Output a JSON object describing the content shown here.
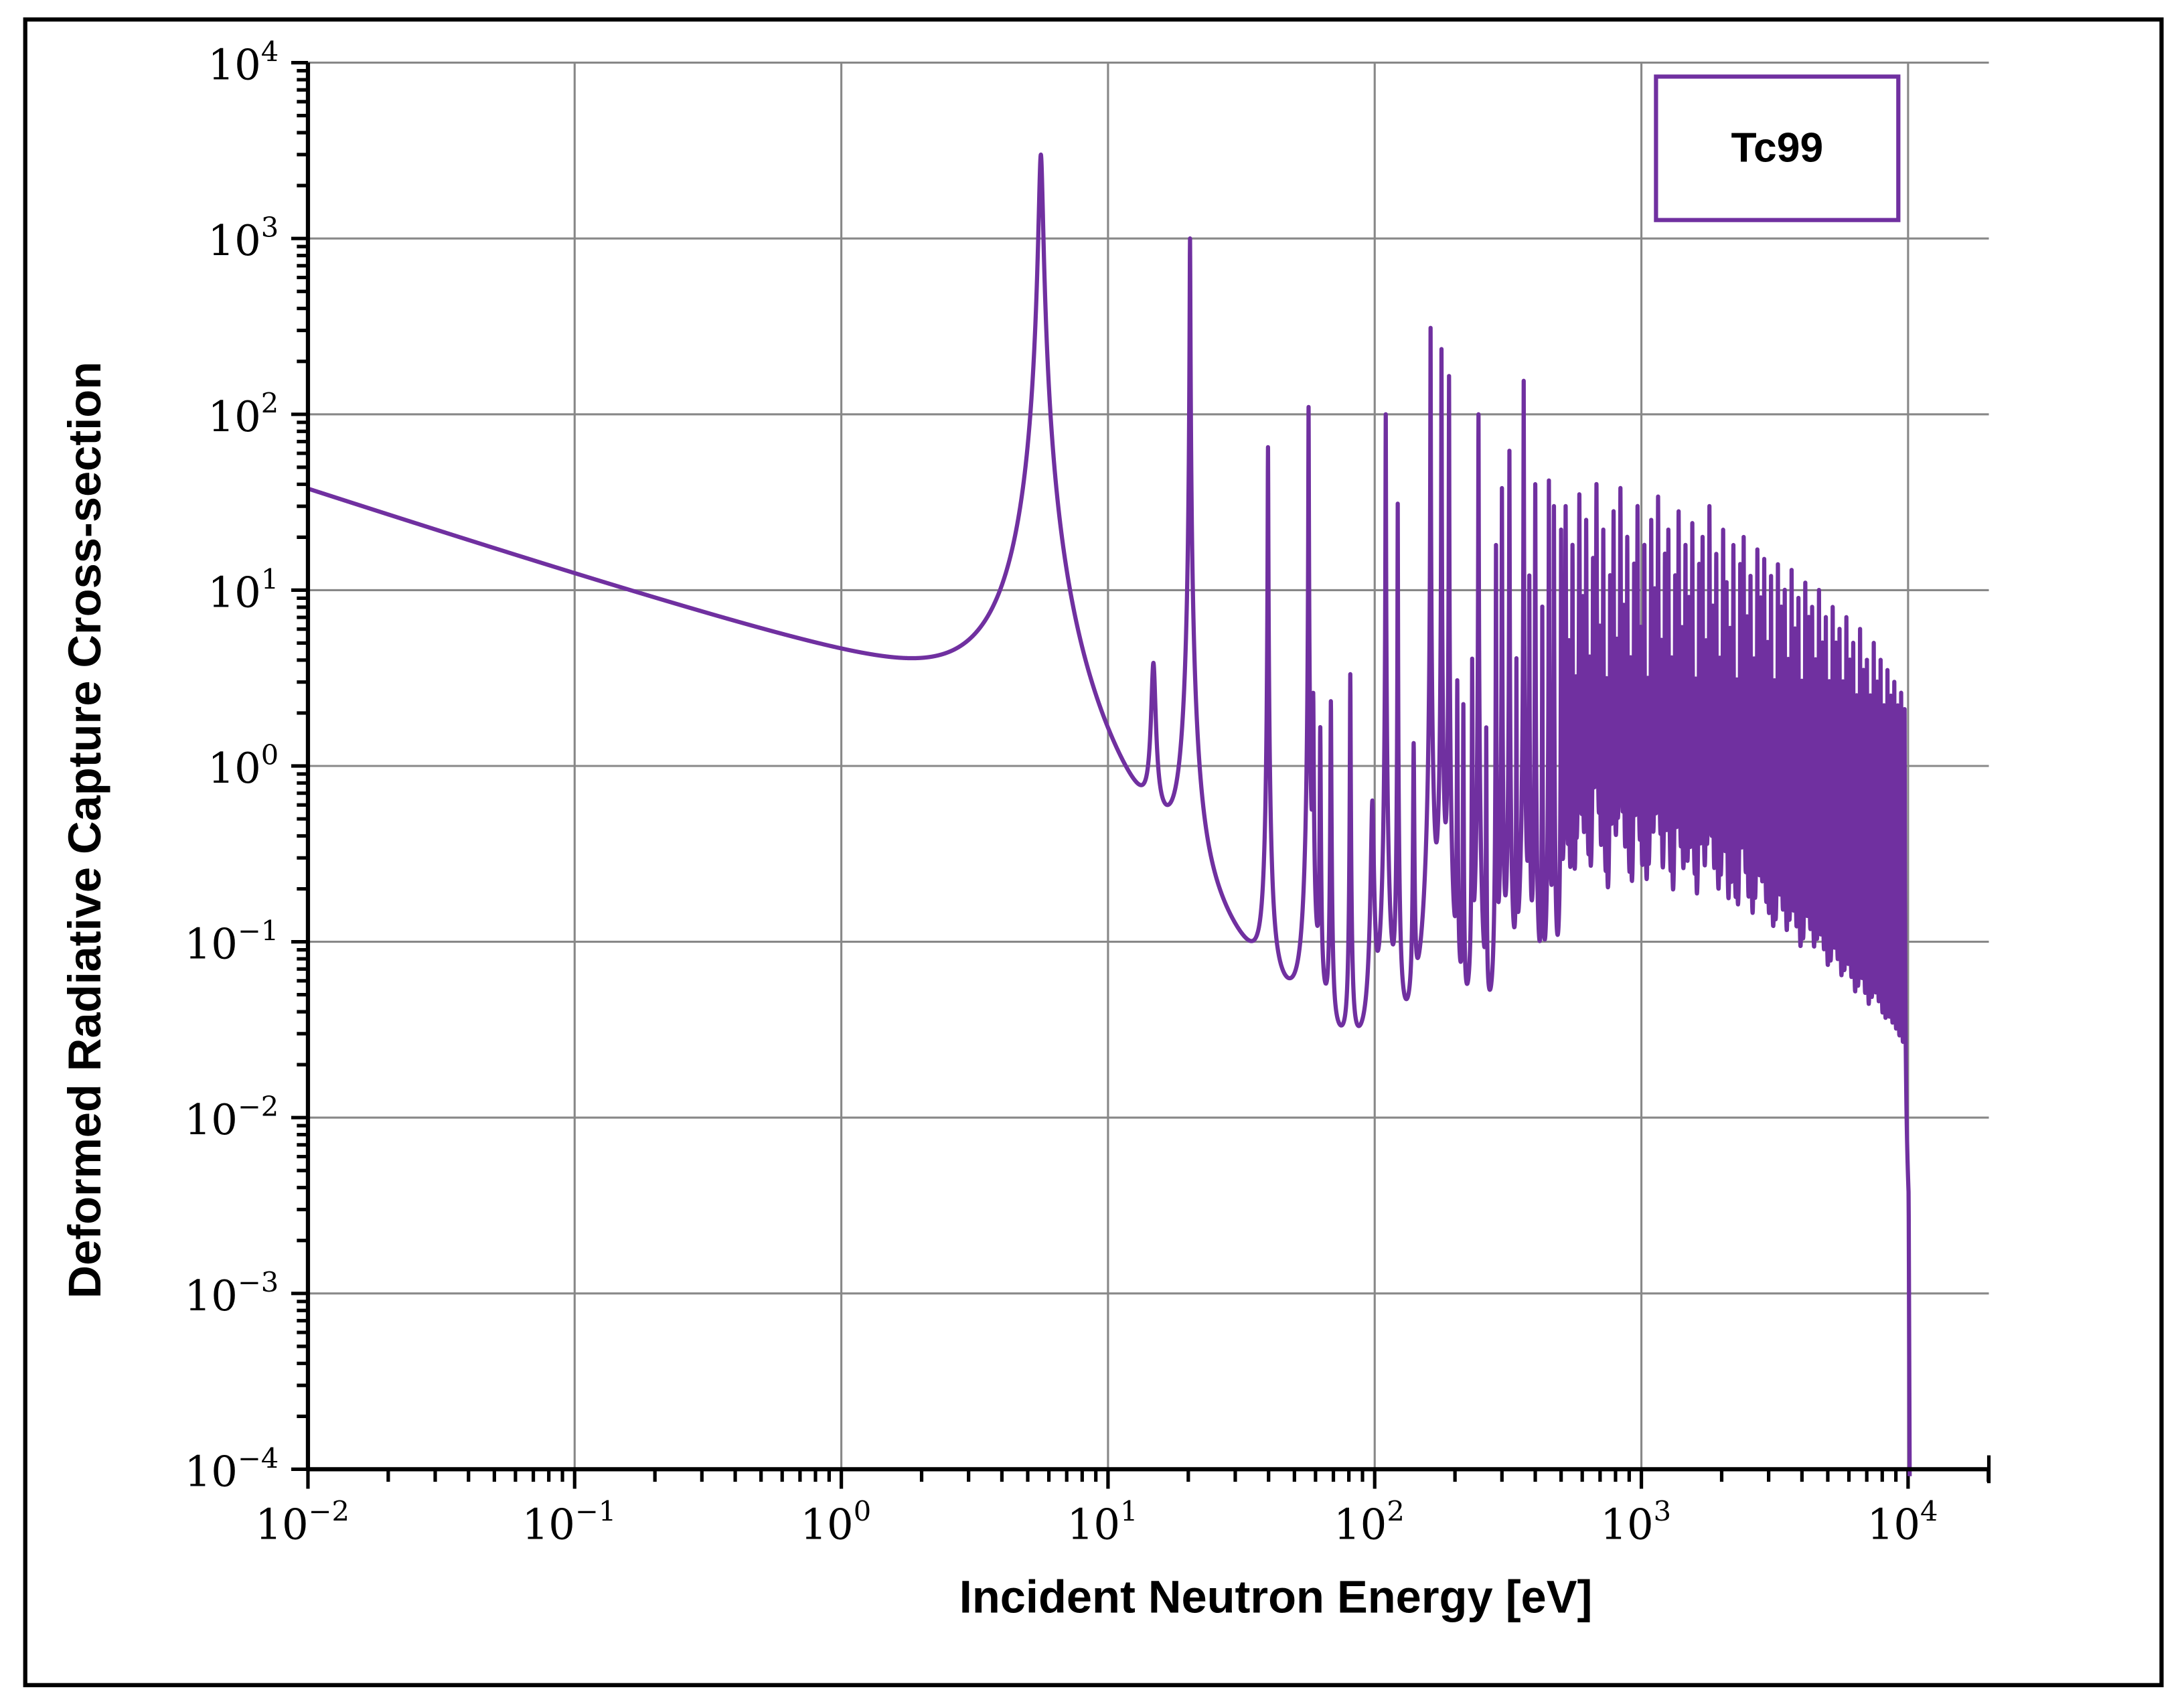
{
  "chart_data": {
    "type": "line",
    "title": "",
    "xlabel": "Incident Neutron Energy [eV]",
    "ylabel": "Deformed Radiative Capture Cross-section",
    "xscale": "log",
    "yscale": "log",
    "xlim": [
      0.01,
      20000
    ],
    "ylim": [
      0.0001,
      10000
    ],
    "grid": true,
    "legend": {
      "placement": "top-right",
      "entries": [
        "Tc99"
      ]
    },
    "x_ticks": [
      {
        "base": "10",
        "exp": "−2"
      },
      {
        "base": "10",
        "exp": "−1"
      },
      {
        "base": "10",
        "exp": "0"
      },
      {
        "base": "10",
        "exp": "1"
      },
      {
        "base": "10",
        "exp": "2"
      },
      {
        "base": "10",
        "exp": "3"
      },
      {
        "base": "10",
        "exp": "4"
      }
    ],
    "y_ticks": [
      {
        "base": "10",
        "exp": "4"
      },
      {
        "base": "10",
        "exp": "3"
      },
      {
        "base": "10",
        "exp": "2"
      },
      {
        "base": "10",
        "exp": "1"
      },
      {
        "base": "10",
        "exp": "0"
      },
      {
        "base": "10",
        "exp": "−1"
      },
      {
        "base": "10",
        "exp": "−2"
      },
      {
        "base": "10",
        "exp": "−3"
      },
      {
        "base": "10",
        "exp": "−4"
      }
    ],
    "series": [
      {
        "name": "Tc99",
        "color": "#7030a0",
        "energy_range": [
          0.01,
          10500
        ],
        "background_at_0.01eV": 37,
        "resolved_resonances_E_peak_halfwidth": [
          [
            5.6,
            3000,
            0.09
          ],
          [
            14.8,
            3.3,
            0.25
          ],
          [
            20.3,
            1000,
            0.05
          ],
          [
            39.8,
            65,
            0.08
          ],
          [
            56.5,
            110,
            0.09
          ],
          [
            58.8,
            2.4,
            0.2
          ],
          [
            62.5,
            1.6,
            0.2
          ],
          [
            68.5,
            2.3,
            0.2
          ],
          [
            81,
            3.3,
            0.2
          ],
          [
            98,
            0.6,
            1.0
          ],
          [
            110,
            100,
            0.15
          ],
          [
            122,
            31,
            0.15
          ],
          [
            140,
            1.3,
            0.5
          ],
          [
            162,
            310,
            0.2
          ],
          [
            178,
            235,
            0.2
          ],
          [
            190,
            165,
            0.2
          ],
          [
            204,
            3,
            0.4
          ],
          [
            215,
            2.2,
            0.4
          ],
          [
            232,
            4,
            0.4
          ],
          [
            245,
            100,
            0.3
          ],
          [
            262,
            1.6,
            0.4
          ],
          [
            285,
            18,
            0.35
          ],
          [
            300,
            38,
            0.4
          ],
          [
            320,
            62,
            0.4
          ],
          [
            340,
            4,
            0.4
          ],
          [
            362,
            155,
            0.4
          ],
          [
            380,
            12,
            0.5
          ],
          [
            400,
            40,
            0.5
          ],
          [
            425,
            8,
            0.5
          ],
          [
            450,
            42,
            0.5
          ],
          [
            470,
            30,
            0.5
          ],
          [
            500,
            22,
            0.5
          ]
        ],
        "unresolved_region": {
          "start_eV": 520,
          "end_eV": 10300,
          "spacing_ratio": 1.03,
          "halfwidth_fraction": 0.001,
          "peaks": [
            30,
            5,
            18,
            3,
            35,
            9,
            25,
            4,
            15,
            40,
            6,
            22,
            3,
            12,
            28,
            5,
            38,
            8,
            20,
            4,
            14,
            30,
            6,
            18,
            3,
            25,
            10,
            34,
            5,
            16,
            22,
            4,
            12,
            28,
            6,
            18,
            9,
            24,
            3,
            14,
            20,
            5,
            30,
            8,
            16,
            4,
            22,
            11,
            6,
            18,
            3,
            14,
            20,
            7,
            12,
            4,
            17,
            9,
            15,
            5,
            12,
            3,
            14,
            8,
            10,
            4,
            13,
            6,
            9,
            3,
            11,
            7,
            8,
            4,
            10,
            5,
            7,
            3,
            8,
            5,
            6,
            3,
            7,
            4,
            5,
            2.5,
            6,
            3.5,
            4,
            2.5,
            5,
            3,
            4,
            2.2,
            3.5,
            2.5,
            3,
            2.2,
            2.6,
            2.1
          ]
        }
      }
    ]
  }
}
